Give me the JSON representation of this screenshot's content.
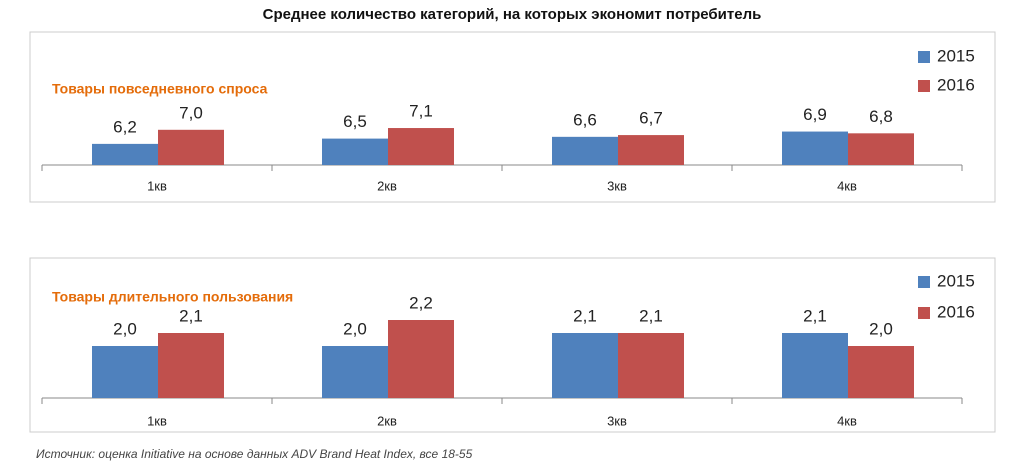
{
  "title": "Среднее количество категорий, на которых экономит потребитель",
  "source": "Источник: оценка Initiative на основе данных ADV Brand Heat Index, все 18-55",
  "chart_data": [
    {
      "type": "bar",
      "subtitle": "Товары повседневного спроса",
      "categories": [
        "1кв",
        "2кв",
        "3кв",
        "4кв"
      ],
      "ylim": [
        5,
        7.5
      ],
      "legend": "right",
      "series": [
        {
          "name": "2015",
          "color": "#4f81bd",
          "values": [
            6.2,
            6.5,
            6.6,
            6.9
          ],
          "value_labels": [
            "6,2",
            "6,5",
            "6,6",
            "6,9"
          ]
        },
        {
          "name": "2016",
          "color": "#c0504d",
          "values": [
            7.0,
            7.1,
            6.7,
            6.8
          ],
          "value_labels": [
            "7,0",
            "7,1",
            "6,7",
            "6,8"
          ]
        }
      ]
    },
    {
      "type": "bar",
      "subtitle": "Товары длительного пользования",
      "categories": [
        "1кв",
        "2кв",
        "3кв",
        "4кв"
      ],
      "ylim": [
        1.6,
        2.4
      ],
      "legend": "right",
      "series": [
        {
          "name": "2015",
          "color": "#4f81bd",
          "values": [
            2.0,
            2.0,
            2.1,
            2.1
          ],
          "value_labels": [
            "2,0",
            "2,0",
            "2,1",
            "2,1"
          ]
        },
        {
          "name": "2016",
          "color": "#c0504d",
          "values": [
            2.1,
            2.2,
            2.1,
            2.0
          ],
          "value_labels": [
            "2,1",
            "2,2",
            "2,1",
            "2,0"
          ]
        }
      ]
    }
  ]
}
